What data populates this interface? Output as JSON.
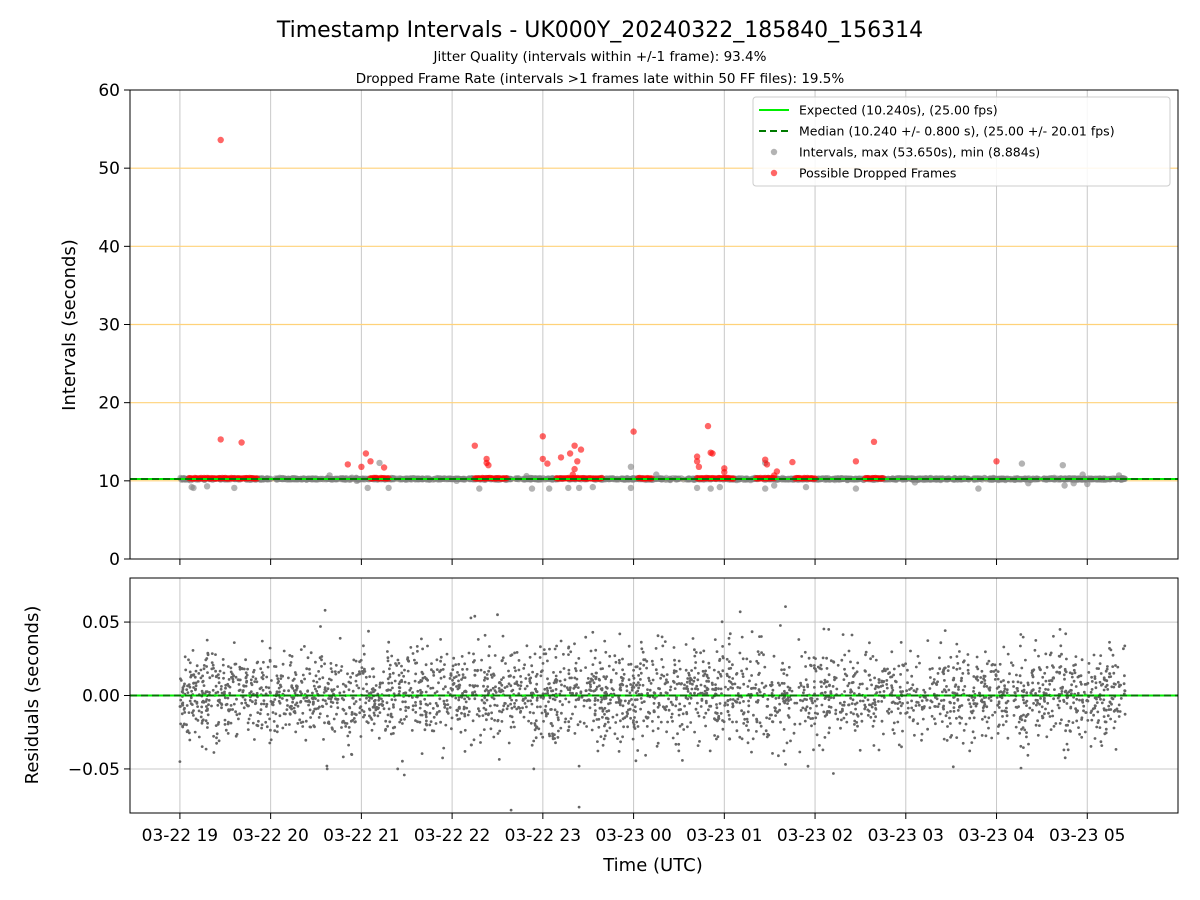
{
  "title": "Timestamp Intervals - UK000Y_20240322_185840_156314",
  "subtitles": [
    "Jitter Quality (intervals within +/-1 frame): 93.4%",
    "Dropped Frame Rate (intervals >1 frames late within 50 FF files): 19.5%"
  ],
  "colors": {
    "expected": "#00ee00",
    "median": "#007a00",
    "intervals": "#808080",
    "dropped": "#ff0000",
    "hgrid_top": "#ffd27a",
    "grid": "#c8c8c8",
    "residuals": "#666666"
  },
  "chart_data": [
    {
      "type": "scatter",
      "panel": "top",
      "xlabel": "",
      "ylabel": "Intervals (seconds)",
      "ylim": [
        0,
        60
      ],
      "yticks": [
        0,
        10,
        20,
        30,
        40,
        50,
        60
      ],
      "xlim_hours": [
        18.45,
        30.0
      ],
      "x_ticks": [
        {
          "hour": 19,
          "label": "03-22 19"
        },
        {
          "hour": 20,
          "label": "03-22 20"
        },
        {
          "hour": 21,
          "label": "03-22 21"
        },
        {
          "hour": 22,
          "label": "03-22 22"
        },
        {
          "hour": 23,
          "label": "03-22 23"
        },
        {
          "hour": 24,
          "label": "03-23 00"
        },
        {
          "hour": 25,
          "label": "03-23 01"
        },
        {
          "hour": 26,
          "label": "03-23 02"
        },
        {
          "hour": 27,
          "label": "03-23 03"
        },
        {
          "hour": 28,
          "label": "03-23 04"
        },
        {
          "hour": 29,
          "label": "03-23 05"
        }
      ],
      "grid": true,
      "legend": {
        "placement": "top-right",
        "entries": [
          {
            "label": "Expected (10.240s), (25.00 fps)",
            "style": "solid-line",
            "color": "#00ee00"
          },
          {
            "label": "Median (10.240 +/- 0.800 s), (25.00 +/- 20.01 fps)",
            "style": "dashed-line",
            "color": "#007a00"
          },
          {
            "label": "Intervals, max (53.650s), min (8.884s)",
            "style": "marker",
            "color": "#808080"
          },
          {
            "label": "Possible Dropped Frames",
            "style": "marker",
            "color": "#ff0000"
          }
        ]
      },
      "expected_value": 10.24,
      "median_value": 10.24,
      "interval_range": [
        19.0,
        29.42
      ],
      "interval_outliers": [
        [
          19.13,
          9.2
        ],
        [
          19.15,
          9.1
        ],
        [
          19.3,
          9.3
        ],
        [
          19.6,
          9.1
        ],
        [
          20.3,
          10.2
        ],
        [
          20.5,
          10.3
        ],
        [
          20.65,
          10.7
        ],
        [
          20.95,
          10.0
        ],
        [
          21.07,
          9.1
        ],
        [
          21.2,
          12.3
        ],
        [
          21.3,
          9.1
        ],
        [
          22.05,
          10.0
        ],
        [
          22.3,
          9.0
        ],
        [
          22.82,
          10.6
        ],
        [
          22.88,
          9.0
        ],
        [
          23.07,
          9.0
        ],
        [
          23.28,
          9.1
        ],
        [
          23.4,
          9.1
        ],
        [
          23.55,
          9.2
        ],
        [
          23.97,
          11.8
        ],
        [
          23.97,
          9.1
        ],
        [
          24.25,
          10.8
        ],
        [
          24.7,
          9.1
        ],
        [
          24.85,
          9.0
        ],
        [
          24.95,
          9.2
        ],
        [
          25.45,
          9.0
        ],
        [
          25.45,
          12.3
        ],
        [
          25.55,
          9.4
        ],
        [
          25.9,
          9.2
        ],
        [
          26.45,
          9.0
        ],
        [
          27.1,
          9.8
        ],
        [
          27.8,
          9.0
        ],
        [
          28.28,
          12.2
        ],
        [
          28.35,
          9.7
        ],
        [
          28.73,
          12.0
        ],
        [
          28.75,
          9.4
        ],
        [
          28.85,
          9.7
        ],
        [
          28.95,
          10.8
        ],
        [
          29.0,
          9.6
        ],
        [
          29.35,
          10.7
        ],
        [
          29.4,
          10.3
        ]
      ],
      "dropped_runs": [
        [
          19.1,
          19.6
        ],
        [
          19.63,
          19.85
        ],
        [
          21.1,
          21.3
        ],
        [
          22.25,
          22.6
        ],
        [
          23.15,
          23.65
        ],
        [
          24.05,
          24.2
        ],
        [
          24.7,
          25.1
        ],
        [
          25.35,
          25.55
        ],
        [
          25.78,
          26.0
        ],
        [
          26.55,
          26.75
        ]
      ],
      "dropped_points": [
        [
          19.45,
          53.6
        ],
        [
          19.45,
          15.3
        ],
        [
          19.68,
          14.9
        ],
        [
          20.85,
          12.1
        ],
        [
          21.05,
          13.5
        ],
        [
          21.1,
          12.5
        ],
        [
          21.0,
          11.8
        ],
        [
          21.25,
          11.7
        ],
        [
          22.25,
          14.5
        ],
        [
          22.38,
          12.8
        ],
        [
          22.38,
          12.3
        ],
        [
          22.4,
          12.0
        ],
        [
          23.0,
          15.7
        ],
        [
          23.0,
          12.8
        ],
        [
          23.05,
          12.2
        ],
        [
          23.2,
          13.0
        ],
        [
          23.3,
          13.5
        ],
        [
          23.35,
          14.5
        ],
        [
          23.38,
          12.5
        ],
        [
          23.42,
          14.0
        ],
        [
          23.35,
          11.5
        ],
        [
          23.33,
          10.8
        ],
        [
          24.0,
          16.3
        ],
        [
          24.7,
          13.1
        ],
        [
          24.7,
          12.5
        ],
        [
          24.72,
          11.8
        ],
        [
          24.82,
          17.0
        ],
        [
          24.85,
          13.6
        ],
        [
          24.87,
          13.5
        ],
        [
          25.0,
          11.6
        ],
        [
          25.0,
          11.1
        ],
        [
          25.45,
          12.7
        ],
        [
          25.47,
          12.1
        ],
        [
          25.58,
          11.2
        ],
        [
          25.55,
          10.7
        ],
        [
          25.75,
          12.4
        ],
        [
          26.45,
          12.5
        ],
        [
          26.65,
          15.0
        ],
        [
          28.0,
          12.5
        ]
      ]
    },
    {
      "type": "scatter",
      "panel": "bottom",
      "xlabel": "Time (UTC)",
      "ylabel": "Residuals (seconds)",
      "ylim": [
        -0.08,
        0.08
      ],
      "yticks": [
        -0.05,
        0.0,
        0.05
      ],
      "ytick_labels": [
        "−0.05",
        "0.00",
        "0.05"
      ],
      "grid": true,
      "zero_line": 0.0,
      "residual_range": [
        19.0,
        29.42
      ],
      "residual_spread": 0.016,
      "residual_count": 3000,
      "residual_extremes": [
        [
          20.6,
          0.058
        ],
        [
          22.25,
          0.054
        ],
        [
          22.5,
          0.055
        ],
        [
          22.65,
          -0.078
        ],
        [
          22.9,
          -0.05
        ],
        [
          23.4,
          -0.076
        ],
        [
          21.4,
          -0.05
        ],
        [
          20.62,
          -0.048
        ],
        [
          19.0,
          -0.045
        ],
        [
          28.7,
          0.045
        ],
        [
          26.15,
          0.045
        ],
        [
          20.55,
          0.047
        ],
        [
          23.55,
          0.043
        ]
      ]
    }
  ]
}
